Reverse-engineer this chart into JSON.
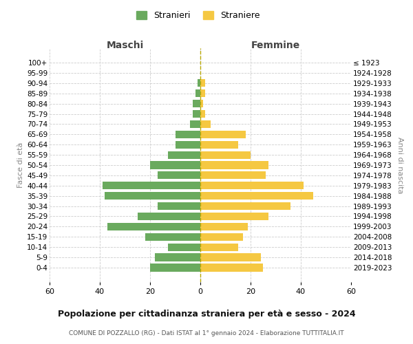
{
  "age_groups": [
    "100+",
    "95-99",
    "90-94",
    "85-89",
    "80-84",
    "75-79",
    "70-74",
    "65-69",
    "60-64",
    "55-59",
    "50-54",
    "45-49",
    "40-44",
    "35-39",
    "30-34",
    "25-29",
    "20-24",
    "15-19",
    "10-14",
    "5-9",
    "0-4"
  ],
  "birth_years": [
    "≤ 1923",
    "1924-1928",
    "1929-1933",
    "1934-1938",
    "1939-1943",
    "1944-1948",
    "1949-1953",
    "1954-1958",
    "1959-1963",
    "1964-1968",
    "1969-1973",
    "1974-1978",
    "1979-1983",
    "1984-1988",
    "1989-1993",
    "1994-1998",
    "1999-2003",
    "2004-2008",
    "2009-2013",
    "2014-2018",
    "2019-2023"
  ],
  "maschi": [
    0,
    0,
    1,
    2,
    3,
    3,
    4,
    10,
    10,
    13,
    20,
    17,
    39,
    38,
    17,
    25,
    37,
    22,
    13,
    18,
    20
  ],
  "femmine": [
    0,
    0,
    2,
    2,
    1,
    2,
    4,
    18,
    15,
    20,
    27,
    26,
    41,
    45,
    36,
    27,
    19,
    17,
    15,
    24,
    25
  ],
  "maschi_color": "#6aaa5e",
  "femmine_color": "#f5c842",
  "center_line_color": "#b8a800",
  "grid_color": "#cccccc",
  "title": "Popolazione per cittadinanza straniera per età e sesso - 2024",
  "subtitle": "COMUNE DI POZZALLO (RG) - Dati ISTAT al 1° gennaio 2024 - Elaborazione TUTTITALIA.IT",
  "xlabel_left": "Maschi",
  "xlabel_right": "Femmine",
  "ylabel_left": "Fasce di età",
  "ylabel_right": "Anni di nascita",
  "legend_maschi": "Stranieri",
  "legend_femmine": "Straniere",
  "xlim": 60,
  "bar_height": 0.75
}
